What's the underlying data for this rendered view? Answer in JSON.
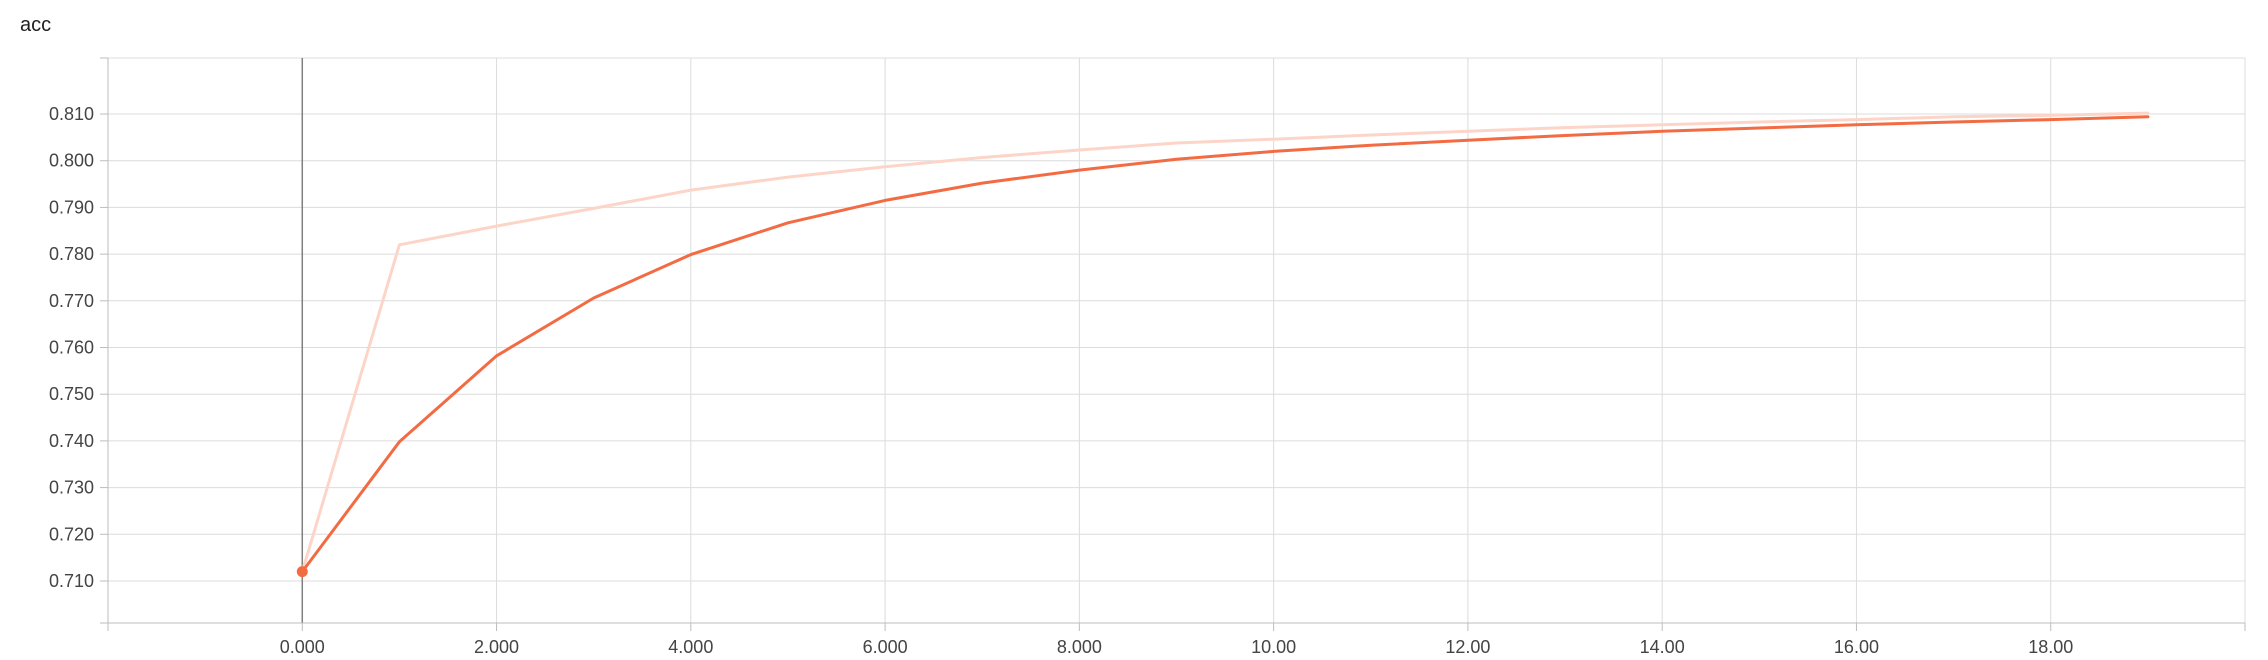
{
  "chart_data": {
    "type": "line",
    "title": "acc",
    "xlabel": "",
    "ylabel": "",
    "xlim": [
      -2,
      20
    ],
    "ylim": [
      0.701,
      0.822
    ],
    "grid": true,
    "x_ticks": [
      0,
      2,
      4,
      6,
      8,
      10,
      12,
      14,
      16,
      18
    ],
    "x_tick_labels": [
      "0.000",
      "2.000",
      "4.000",
      "6.000",
      "8.000",
      "10.00",
      "12.00",
      "14.00",
      "16.00",
      "18.00"
    ],
    "y_ticks": [
      0.71,
      0.72,
      0.73,
      0.74,
      0.75,
      0.76,
      0.77,
      0.78,
      0.79,
      0.8,
      0.81
    ],
    "y_tick_labels": [
      "0.710",
      "0.720",
      "0.730",
      "0.740",
      "0.750",
      "0.760",
      "0.770",
      "0.780",
      "0.790",
      "0.800",
      "0.810"
    ],
    "series": [
      {
        "role": "raw",
        "color": "#fcd5c8",
        "x": [
          0,
          1,
          2,
          3,
          4,
          5,
          6,
          7,
          8,
          9,
          10,
          11,
          12,
          13,
          14,
          15,
          16,
          17,
          18,
          19
        ],
        "values": [
          0.712,
          0.782,
          0.786,
          0.7898,
          0.7937,
          0.7965,
          0.7987,
          0.8007,
          0.8023,
          0.8038,
          0.8046,
          0.8055,
          0.8063,
          0.8071,
          0.8077,
          0.8083,
          0.8088,
          0.8094,
          0.8097,
          0.8102
        ]
      },
      {
        "role": "smoothed",
        "color": "#f26b43",
        "x": [
          0,
          1,
          2,
          3,
          4,
          5,
          6,
          7,
          8,
          9,
          10,
          11,
          12,
          13,
          14,
          15,
          16,
          17,
          18,
          19
        ],
        "values": [
          0.712,
          0.7398,
          0.7582,
          0.7706,
          0.7799,
          0.7867,
          0.7915,
          0.7952,
          0.798,
          0.8003,
          0.802,
          0.8033,
          0.8044,
          0.8054,
          0.8063,
          0.807,
          0.8077,
          0.8083,
          0.8088,
          0.8094
        ]
      }
    ],
    "highlight_point": {
      "x": 0,
      "y": 0.712,
      "color": "#f26b43"
    }
  }
}
